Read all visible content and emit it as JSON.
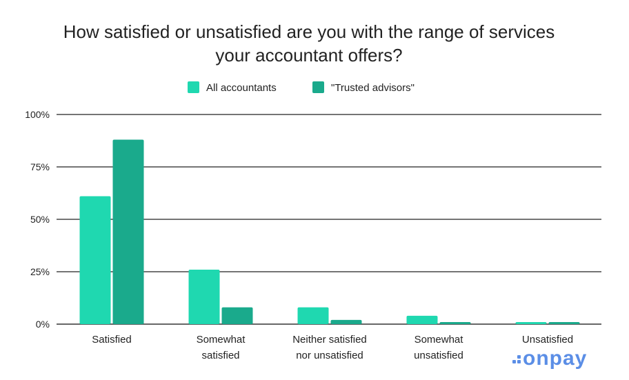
{
  "chart_data": {
    "type": "bar",
    "title": "How satisfied or unsatisfied are you with the range of services your accountant offers?",
    "title_lines": [
      "How satisfied or unsatisfied are you with the range of services",
      "your accountant offers?"
    ],
    "categories": [
      "Satisfied",
      "Somewhat satisfied",
      "Neither satisfied nor unsatisfied",
      "Somewhat unsatisfied",
      "Unsatisfied"
    ],
    "category_lines": [
      [
        "Satisfied"
      ],
      [
        "Somewhat",
        "satisfied"
      ],
      [
        "Neither satisfied",
        "nor unsatisfied"
      ],
      [
        "Somewhat",
        "unsatisfied"
      ],
      [
        "Unsatisfied"
      ]
    ],
    "series": [
      {
        "name": "All accountants",
        "color": "#1fd8b0",
        "values": [
          61,
          26,
          8,
          4,
          1
        ]
      },
      {
        "name": "\"Trusted advisors\"",
        "color": "#1aaa8c",
        "values": [
          88,
          8,
          2,
          1,
          1
        ]
      }
    ],
    "ylim": [
      0,
      100
    ],
    "yticks": [
      0,
      25,
      50,
      75,
      100
    ],
    "ytick_labels": [
      "0%",
      "25%",
      "50%",
      "75%",
      "100%"
    ],
    "xlabel": "",
    "ylabel": "",
    "grid": true,
    "legend_position": "top-center"
  },
  "branding": {
    "logo_text": "onpay",
    "logo_color": "#5b8ee6"
  }
}
